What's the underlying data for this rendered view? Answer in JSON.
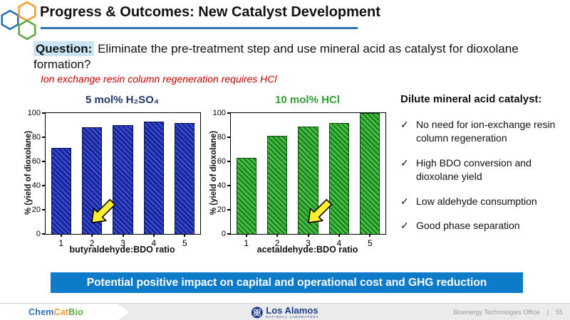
{
  "slide": {
    "title": "Progress & Outcomes: New Catalyst Development",
    "question_label": "Question:",
    "question_text": " Eliminate the pre-treatment step and use mineral acid as catalyst for dioxolane formation?",
    "question_highlight_color": "#c9e4f5",
    "note_red": "Ion exchange resin column regeneration requires HCl",
    "note_red_color": "#c00000",
    "banner": "Potential positive impact on capital and operational cost and GHG reduction",
    "banner_color": "#0e7bc9",
    "underline_color": "#2e74b5"
  },
  "chart_data": [
    {
      "type": "bar",
      "title": "5 mol% H₂SO₄",
      "title_color": "#1f3864",
      "categories": [
        "1",
        "2",
        "3",
        "4",
        "5"
      ],
      "values": [
        71,
        88,
        90,
        93,
        92
      ],
      "xlabel": "butyraldehyde:BDO ratio",
      "ylabel": "% (yield of dioxolane)",
      "ylim": [
        0,
        100
      ],
      "yticks": [
        0,
        20,
        40,
        60,
        80,
        100
      ],
      "grid": false,
      "bar_fill": "#17259d",
      "bar_hatch": "#3e52cf",
      "bar_border": "#0a1046",
      "arrow_at_category": "2"
    },
    {
      "type": "bar",
      "title": "10 mol% HCl",
      "title_color": "#2f9e2f",
      "categories": [
        "1",
        "2",
        "3",
        "4",
        "5"
      ],
      "values": [
        63,
        81,
        89,
        92,
        100
      ],
      "xlabel": "acetaldehyde:BDO ratio",
      "ylabel": "% (yield of dioxolane)",
      "ylim": [
        0,
        100
      ],
      "yticks": [
        0,
        20,
        40,
        60,
        80,
        100
      ],
      "grid": false,
      "bar_fill": "#1d8a1d",
      "bar_hatch": "#55c555",
      "bar_border": "#0e4d0e",
      "arrow_at_category": "3"
    }
  ],
  "arrow_color": "#fdee30",
  "right_panel": {
    "heading": "Dilute mineral acid catalyst:",
    "check_glyph": "✓",
    "bullets": [
      "No need for ion-exchange resin column regeneration",
      "High BDO conversion and dioxolane yield",
      "Low aldehyde consumption",
      "Good phase separation"
    ]
  },
  "footer": {
    "chemcatbio": [
      {
        "text": "Chem",
        "color": "#2d73b5"
      },
      {
        "text": "Cat",
        "color": "#f0a030"
      },
      {
        "text": "Bio",
        "color": "#64a844"
      }
    ],
    "lanl_name": "Los Alamos",
    "lanl_sub": "NATIONAL LABORATORY",
    "office": "Bioenergy Technologies Office",
    "divider": "|",
    "page": "55"
  }
}
